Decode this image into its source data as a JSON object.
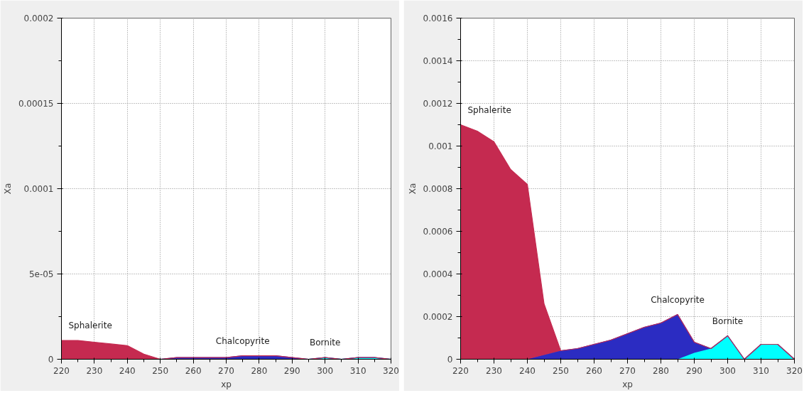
{
  "chart_data": [
    {
      "type": "area",
      "stacked": true,
      "xlabel": "xp",
      "ylabel": "Xa",
      "x": [
        220,
        225,
        230,
        235,
        240,
        245,
        250,
        255,
        260,
        265,
        270,
        275,
        280,
        285,
        290,
        295,
        300,
        305,
        310,
        315,
        320
      ],
      "xlim": [
        220,
        320
      ],
      "xticks": [
        220,
        230,
        240,
        250,
        260,
        270,
        280,
        290,
        300,
        310,
        320
      ],
      "ylim": [
        0,
        0.0002
      ],
      "yticks": [
        0,
        {
          "value": 5e-05,
          "label": "5e-05"
        },
        0.0001,
        0.00015,
        0.0002
      ],
      "grid": true,
      "series": [
        {
          "name": "Bornite",
          "color": "#00ffff",
          "values": [
            0,
            0,
            0,
            0,
            0,
            0,
            0,
            0,
            0,
            0,
            0,
            0,
            0,
            0,
            0,
            0,
            1e-06,
            0,
            1e-06,
            1e-06,
            0
          ]
        },
        {
          "name": "Chalcopyrite",
          "color": "#2b2cc2",
          "values": [
            0,
            0,
            0,
            0,
            0,
            0,
            0,
            1e-06,
            1e-06,
            1e-06,
            1e-06,
            2e-06,
            2e-06,
            2e-06,
            1e-06,
            0,
            0,
            0,
            0,
            0,
            0
          ]
        },
        {
          "name": "Sphalerite",
          "color": "#c52a50",
          "values": [
            1.1e-05,
            1.1e-05,
            1e-05,
            9e-06,
            8e-06,
            3e-06,
            0,
            0,
            0,
            0,
            0,
            0,
            0,
            0,
            0,
            0,
            0,
            0,
            0,
            0,
            0
          ]
        }
      ]
    },
    {
      "type": "area",
      "stacked": true,
      "xlabel": "xp",
      "ylabel": "Xa",
      "x": [
        220,
        225,
        230,
        235,
        240,
        245,
        250,
        255,
        260,
        265,
        270,
        275,
        280,
        285,
        290,
        295,
        300,
        305,
        310,
        315,
        320
      ],
      "xlim": [
        220,
        320
      ],
      "xticks": [
        220,
        230,
        240,
        250,
        260,
        270,
        280,
        290,
        300,
        310,
        320
      ],
      "ylim": [
        0,
        0.0016
      ],
      "yticks": [
        0,
        0.0002,
        0.0004,
        0.0006,
        0.0008,
        0.001,
        0.0012,
        0.0014,
        0.0016
      ],
      "grid": true,
      "series": [
        {
          "name": "Bornite",
          "color": "#00ffff",
          "values": [
            0,
            0,
            0,
            0,
            0,
            0,
            0,
            0,
            0,
            0,
            0,
            0,
            0,
            0,
            3e-05,
            5e-05,
            0.00011,
            0,
            7e-05,
            7e-05,
            0
          ]
        },
        {
          "name": "Chalcopyrite",
          "color": "#2b2cc2",
          "values": [
            0,
            0,
            0,
            0,
            0,
            2e-05,
            4e-05,
            5e-05,
            7e-05,
            9e-05,
            0.00012,
            0.00015,
            0.00017,
            0.00021,
            5e-05,
            0,
            0,
            0,
            0,
            0,
            0
          ]
        },
        {
          "name": "Sphalerite",
          "color": "#c52a50",
          "values": [
            0.0011,
            0.00107,
            0.00102,
            0.00089,
            0.00082,
            0.00024,
            0,
            0,
            0,
            0,
            0,
            0,
            0,
            0,
            0,
            0,
            0,
            0,
            0,
            0,
            0
          ]
        }
      ]
    }
  ]
}
